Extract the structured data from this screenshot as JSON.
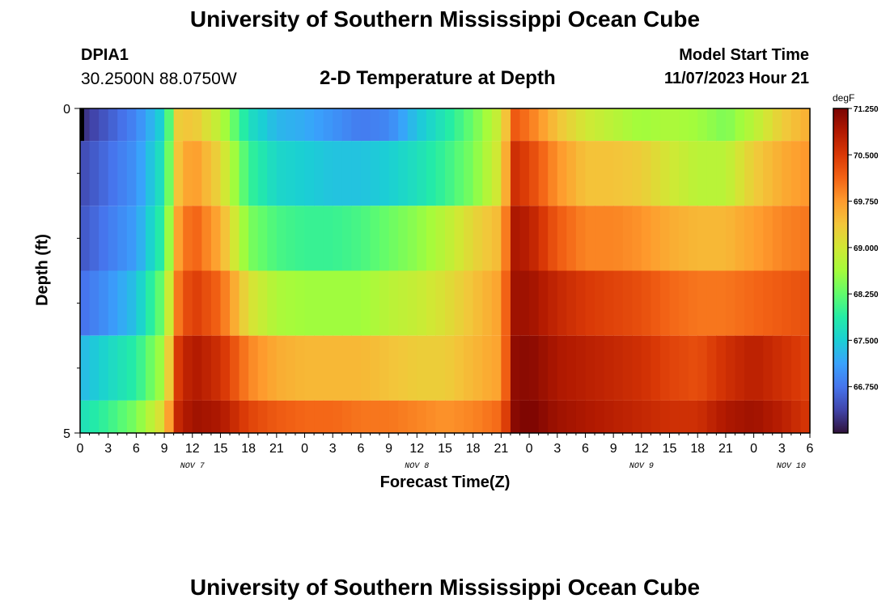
{
  "header": {
    "title": "University of Southern Mississippi Ocean Cube",
    "station_id": "DPIA1",
    "station_coords": "30.2500N  88.0750W",
    "subtitle": "2-D Temperature at Depth",
    "model_start_label": "Model Start Time",
    "model_start_value": "11/07/2023 Hour 21"
  },
  "footer": {
    "title": "University of Southern Mississippi Ocean Cube"
  },
  "chart_data": {
    "type": "heatmap",
    "title": "2-D Temperature at Depth",
    "xlabel": "Forecast Time(Z)",
    "ylabel": "Depth (ft)",
    "x_tick_labels": [
      "0",
      "3",
      "6",
      "9",
      "12",
      "15",
      "18",
      "21",
      "0",
      "3",
      "6",
      "9",
      "12",
      "15",
      "18",
      "21",
      "0",
      "3",
      "6",
      "9",
      "12",
      "15",
      "18",
      "21",
      "0",
      "3",
      "6"
    ],
    "x_hours_since_nov6_00z": [
      0,
      3,
      6,
      9,
      12,
      15,
      18,
      21,
      24,
      27,
      30,
      33,
      36,
      39,
      42,
      45,
      48,
      51,
      54,
      57,
      60,
      63,
      66,
      69,
      72,
      75,
      78
    ],
    "date_labels": [
      {
        "text": "NOV 7",
        "hour": 12
      },
      {
        "text": "NOV 8",
        "hour": 36
      },
      {
        "text": "NOV 9",
        "hour": 60
      },
      {
        "text": "NOV 10",
        "hour": 84
      }
    ],
    "y_tick_labels": [
      "0",
      "5"
    ],
    "ylim": [
      0,
      5
    ],
    "xlim": [
      0,
      78
    ],
    "depth_layers_ft": [
      0,
      1,
      2,
      3,
      4,
      5
    ],
    "colorbar": {
      "unit": "degF",
      "min": 66.0,
      "max": 71.25,
      "tick_values": [
        "71.250",
        "70.500",
        "69.750",
        "69.000",
        "68.250",
        "67.500",
        "66.750"
      ]
    },
    "colors": [
      "#30123b",
      "#4145ab",
      "#4675ed",
      "#39a2fc",
      "#1bcfd4",
      "#24eca6",
      "#61fc6c",
      "#a4fc3b",
      "#d1e834",
      "#f3c63a",
      "#fe9b2d",
      "#f36315",
      "#d93806",
      "#b11901",
      "#7a0402"
    ],
    "rows_time_hours": [
      0,
      3,
      6,
      9,
      10.5,
      12,
      15,
      18,
      21,
      24,
      27,
      30,
      33,
      36,
      39,
      42,
      45,
      46.5,
      48,
      51,
      54,
      57,
      60,
      63,
      66,
      69,
      72,
      75,
      78
    ],
    "values_degF": [
      [
        66.2,
        66.55,
        66.9,
        67.6,
        69.3,
        69.4,
        68.8,
        67.7,
        67.3,
        67.2,
        67.0,
        66.8,
        66.9,
        67.4,
        67.8,
        68.3,
        69.0,
        70.2,
        70.0,
        69.4,
        69.0,
        68.8,
        68.6,
        68.7,
        68.6,
        68.4,
        68.8,
        69.3,
        69.6
      ],
      [
        66.4,
        66.7,
        67.0,
        67.8,
        69.4,
        69.8,
        69.2,
        68.0,
        67.6,
        67.5,
        67.4,
        67.4,
        67.5,
        67.7,
        68.0,
        68.4,
        69.1,
        70.6,
        70.4,
        69.8,
        69.4,
        69.4,
        69.3,
        69.0,
        68.8,
        68.8,
        69.3,
        69.6,
        69.8
      ],
      [
        66.5,
        66.8,
        67.1,
        68.0,
        69.7,
        70.2,
        69.6,
        68.4,
        68.1,
        68.0,
        68.0,
        68.1,
        68.3,
        68.5,
        68.8,
        69.2,
        69.5,
        70.9,
        70.8,
        70.2,
        69.9,
        69.9,
        69.8,
        69.6,
        69.5,
        69.5,
        69.7,
        69.9,
        70.0
      ],
      [
        66.7,
        67.0,
        67.4,
        68.4,
        70.0,
        70.5,
        70.1,
        69.1,
        68.7,
        68.6,
        68.6,
        68.6,
        68.8,
        68.9,
        69.1,
        69.4,
        69.7,
        71.0,
        71.0,
        70.7,
        70.5,
        70.4,
        70.3,
        70.1,
        70.0,
        70.0,
        70.1,
        70.2,
        70.3
      ],
      [
        67.3,
        67.6,
        67.9,
        68.7,
        70.5,
        70.9,
        70.6,
        69.9,
        69.6,
        69.5,
        69.5,
        69.5,
        69.4,
        69.3,
        69.3,
        69.5,
        69.7,
        71.1,
        71.15,
        70.9,
        70.8,
        70.7,
        70.6,
        70.4,
        70.3,
        70.6,
        70.8,
        70.6,
        70.4
      ],
      [
        67.7,
        68.0,
        68.4,
        69.2,
        70.7,
        71.0,
        70.9,
        70.4,
        70.2,
        70.1,
        70.1,
        70.0,
        70.0,
        69.9,
        69.8,
        69.9,
        70.1,
        71.15,
        71.25,
        71.0,
        70.9,
        70.8,
        70.7,
        70.6,
        70.6,
        70.9,
        71.0,
        70.8,
        70.5
      ]
    ]
  }
}
